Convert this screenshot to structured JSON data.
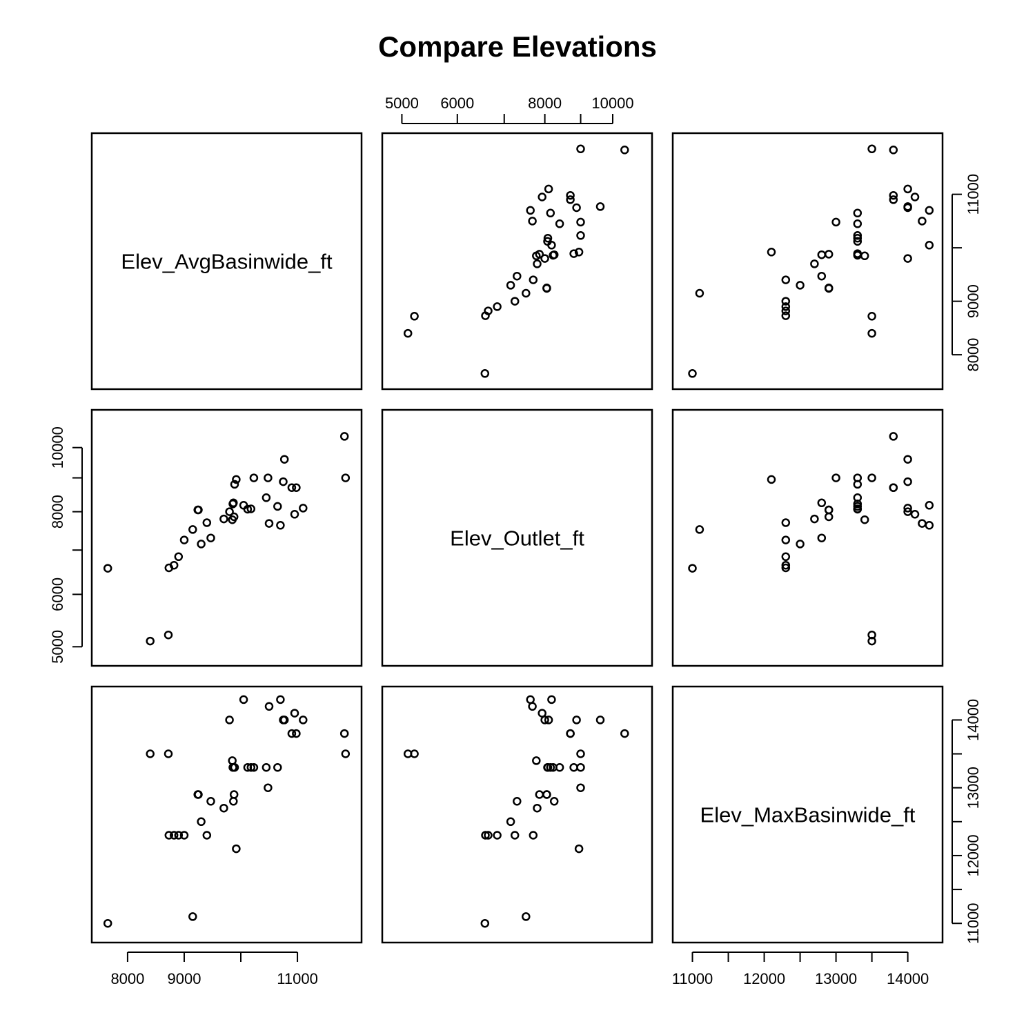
{
  "chart_data": {
    "type": "scatter",
    "title": "Compare Elevations",
    "variables": [
      "Elev_AvgBasinwide_ft",
      "Elev_Outlet_ft",
      "Elev_MaxBasinwide_ft"
    ],
    "axes": {
      "Elev_AvgBasinwide_ft": {
        "range": [
          7550,
          11950
        ],
        "ticks": [
          8000,
          9000,
          10000,
          11000
        ],
        "tick_labels": [
          "8000",
          "9000",
          "",
          "11000"
        ],
        "right_tick_labels": [
          "8000",
          "9000",
          "",
          "11000"
        ]
      },
      "Elev_Outlet_ft": {
        "scale": "log",
        "range": [
          4850,
          11000
        ],
        "ticks": [
          5000,
          6000,
          7000,
          8000,
          9000,
          10000
        ],
        "tick_labels": [
          "5000",
          "6000",
          "",
          "8000",
          "",
          "10000"
        ]
      },
      "Elev_MaxBasinwide_ft": {
        "range": [
          10870,
          14340
        ],
        "ticks": [
          11000,
          11500,
          12000,
          12500,
          13000,
          13500,
          14000
        ],
        "tick_labels": [
          "11000",
          "",
          "12000",
          "",
          "13000",
          "",
          "14000"
        ]
      }
    },
    "points": [
      {
        "avg": 7650,
        "outlet": 6570,
        "max": 11000
      },
      {
        "avg": 8400,
        "outlet": 5100,
        "max": 13500
      },
      {
        "avg": 8720,
        "outlet": 5210,
        "max": 13500
      },
      {
        "avg": 8730,
        "outlet": 6580,
        "max": 12300
      },
      {
        "avg": 8820,
        "outlet": 6640,
        "max": 12300
      },
      {
        "avg": 8900,
        "outlet": 6840,
        "max": 12300
      },
      {
        "avg": 9000,
        "outlet": 7250,
        "max": 12300
      },
      {
        "avg": 9150,
        "outlet": 7520,
        "max": 11100
      },
      {
        "avg": 9240,
        "outlet": 8050,
        "max": 12900
      },
      {
        "avg": 9250,
        "outlet": 8050,
        "max": 12900
      },
      {
        "avg": 9300,
        "outlet": 7150,
        "max": 12500
      },
      {
        "avg": 9400,
        "outlet": 7700,
        "max": 12300
      },
      {
        "avg": 9470,
        "outlet": 7300,
        "max": 12800
      },
      {
        "avg": 9700,
        "outlet": 7800,
        "max": 12700
      },
      {
        "avg": 9800,
        "outlet": 8000,
        "max": 14000
      },
      {
        "avg": 9850,
        "outlet": 7780,
        "max": 13400
      },
      {
        "avg": 9860,
        "outlet": 8220,
        "max": 13300
      },
      {
        "avg": 9870,
        "outlet": 8250,
        "max": 12800
      },
      {
        "avg": 9880,
        "outlet": 7860,
        "max": 12900
      },
      {
        "avg": 9890,
        "outlet": 8800,
        "max": 13300
      },
      {
        "avg": 9920,
        "outlet": 8950,
        "max": 12100
      },
      {
        "avg": 10050,
        "outlet": 8180,
        "max": 14300
      },
      {
        "avg": 10120,
        "outlet": 8070,
        "max": 13300
      },
      {
        "avg": 10180,
        "outlet": 8080,
        "max": 13300
      },
      {
        "avg": 10230,
        "outlet": 9000,
        "max": 13300
      },
      {
        "avg": 10450,
        "outlet": 8400,
        "max": 13300
      },
      {
        "avg": 10480,
        "outlet": 9000,
        "max": 13000
      },
      {
        "avg": 10500,
        "outlet": 7680,
        "max": 14200
      },
      {
        "avg": 10650,
        "outlet": 8150,
        "max": 13300
      },
      {
        "avg": 10700,
        "outlet": 7630,
        "max": 14300
      },
      {
        "avg": 10750,
        "outlet": 8880,
        "max": 14000
      },
      {
        "avg": 10770,
        "outlet": 9600,
        "max": 14000
      },
      {
        "avg": 10900,
        "outlet": 8700,
        "max": 13800
      },
      {
        "avg": 10950,
        "outlet": 7930,
        "max": 14100
      },
      {
        "avg": 10980,
        "outlet": 8700,
        "max": 13800
      },
      {
        "avg": 11100,
        "outlet": 8100,
        "max": 14000
      },
      {
        "avg": 11830,
        "outlet": 10400,
        "max": 13800
      },
      {
        "avg": 11850,
        "outlet": 9000,
        "max": 13500
      }
    ]
  }
}
